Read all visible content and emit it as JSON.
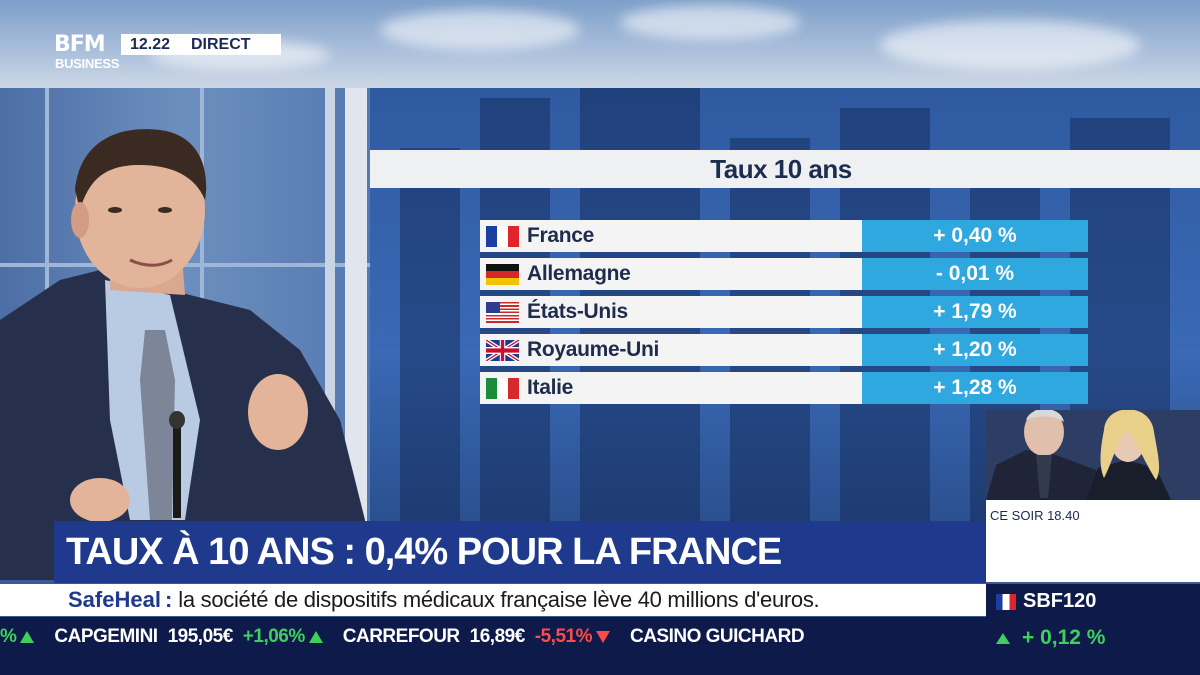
{
  "channel": {
    "logo_line1": "BFM",
    "logo_line2": "BUSINESS",
    "time": "12.22",
    "live_label": "DIRECT"
  },
  "rates_table": {
    "title": "Taux 10 ans",
    "rows": [
      {
        "country": "France",
        "flag": "france-flag",
        "value": "+ 0,40 %"
      },
      {
        "country": "Allemagne",
        "flag": "germany-flag",
        "value": "- 0,01 %"
      },
      {
        "country": "États-Unis",
        "flag": "usa-flag",
        "value": "+ 1,79 %"
      },
      {
        "country": "Royaume-Uni",
        "flag": "uk-flag",
        "value": "+ 1,20 %"
      },
      {
        "country": "Italie",
        "flag": "italy-flag",
        "value": "+ 1,28 %"
      }
    ]
  },
  "inset": {
    "caption": "CE SOIR 18.40"
  },
  "headline": "TAUX À 10 ANS : 0,4% POUR  LA FRANCE",
  "subline": {
    "brand": "SafeHeal",
    "separator": ":",
    "text": "la société de dispositifs médicaux française lève 40 millions d'euros."
  },
  "ticker": {
    "lead_change": "%",
    "items": [
      {
        "name": "CAPGEMINI",
        "price": "195,05€",
        "change": "+1,06%",
        "direction": "up"
      },
      {
        "name": "CARREFOUR",
        "price": "16,89€",
        "change": "-5,51%",
        "direction": "down"
      },
      {
        "name": "CASINO GUICHARD",
        "price": "",
        "change": "",
        "direction": "up"
      }
    ]
  },
  "index": {
    "name": "SBF120",
    "change": "+ 0,12 %",
    "direction": "up"
  },
  "colors": {
    "brand_blue": "#1f3a8c",
    "table_value_blue": "#2fa8e0",
    "ticker_bg": "#0e1b4a",
    "up_green": "#3fcf5a",
    "down_red": "#ff4a4a"
  }
}
